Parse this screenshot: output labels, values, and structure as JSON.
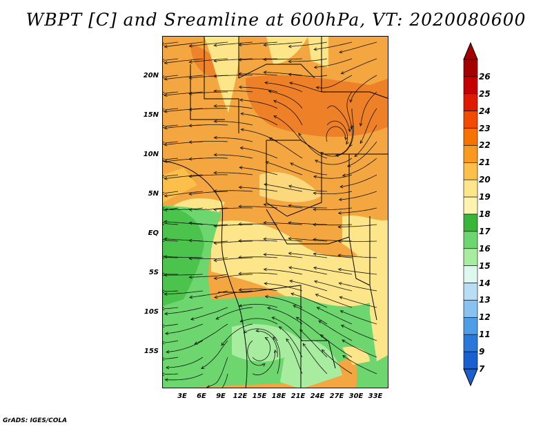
{
  "title": "WBPT [C] and Sreamline at 600hPa, VT: 2020080600",
  "credit": "GrADS: IGES/COLA",
  "axes": {
    "y_ticks": [
      "20N",
      "15N",
      "10N",
      "5N",
      "EQ",
      "5S",
      "10S",
      "15S"
    ],
    "x_ticks": [
      "3E",
      "6E",
      "9E",
      "12E",
      "15E",
      "18E",
      "21E",
      "24E",
      "27E",
      "30E",
      "33E"
    ]
  },
  "colorbar": {
    "labels": [
      "26",
      "25",
      "24",
      "23",
      "22",
      "21",
      "20",
      "19",
      "18",
      "17",
      "16",
      "15",
      "14",
      "13",
      "12",
      "11",
      "9",
      "7"
    ],
    "colors": [
      "#a50000",
      "#c40000",
      "#e01a00",
      "#f24a00",
      "#f77200",
      "#f99a1e",
      "#fbbf4a",
      "#fde58a",
      "#fff3b0",
      "#39b539",
      "#6ed66e",
      "#a8eca0",
      "#def8f0",
      "#b8ddf5",
      "#86c3f0",
      "#4f9de6",
      "#2a78da",
      "#1a5fcf"
    ]
  }
}
